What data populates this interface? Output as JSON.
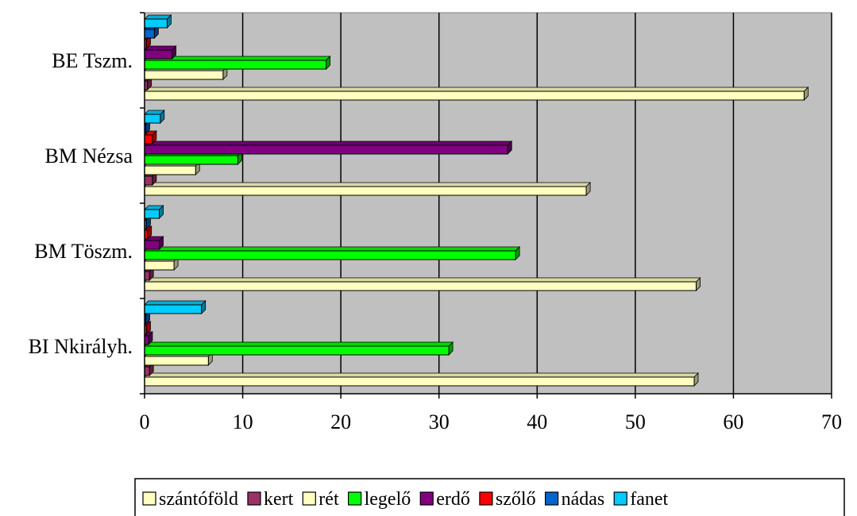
{
  "chart_data": {
    "type": "bar",
    "orientation": "horizontal",
    "categories": [
      "BI Nkirályh.",
      "BM Töszm.",
      "BM Nézsa",
      "BE Tszm."
    ],
    "xlim": [
      0,
      70
    ],
    "x_ticks": [
      0,
      10,
      20,
      30,
      40,
      50,
      60,
      70
    ],
    "grid": "vertical",
    "legend_position": "bottom",
    "series": [
      {
        "name": "szántóföld",
        "color": "#FFFFC0",
        "values": [
          56,
          56.2,
          45,
          67.2
        ]
      },
      {
        "name": "kert",
        "color": "#993366",
        "values": [
          0.5,
          0.5,
          0.8,
          0.3
        ]
      },
      {
        "name": "rét",
        "color": "#FFFFC0",
        "values": [
          6.5,
          3,
          5.2,
          8
        ]
      },
      {
        "name": "legelő",
        "color": "#00FF00",
        "values": [
          31,
          37.8,
          9.5,
          18.5
        ]
      },
      {
        "name": "erdő",
        "color": "#800080",
        "values": [
          0.4,
          1.5,
          37,
          2.8
        ]
      },
      {
        "name": "szőlő",
        "color": "#FF0000",
        "values": [
          0.2,
          0.3,
          0.8,
          0.2
        ]
      },
      {
        "name": "nádas",
        "color": "#0066CC",
        "values": [
          0,
          0.2,
          0.1,
          1
        ]
      },
      {
        "name": "fanet",
        "color": "#00CCFF",
        "values": [
          5.8,
          1.5,
          1.6,
          2.3
        ]
      }
    ],
    "plot_background": "#C0C0C0"
  }
}
